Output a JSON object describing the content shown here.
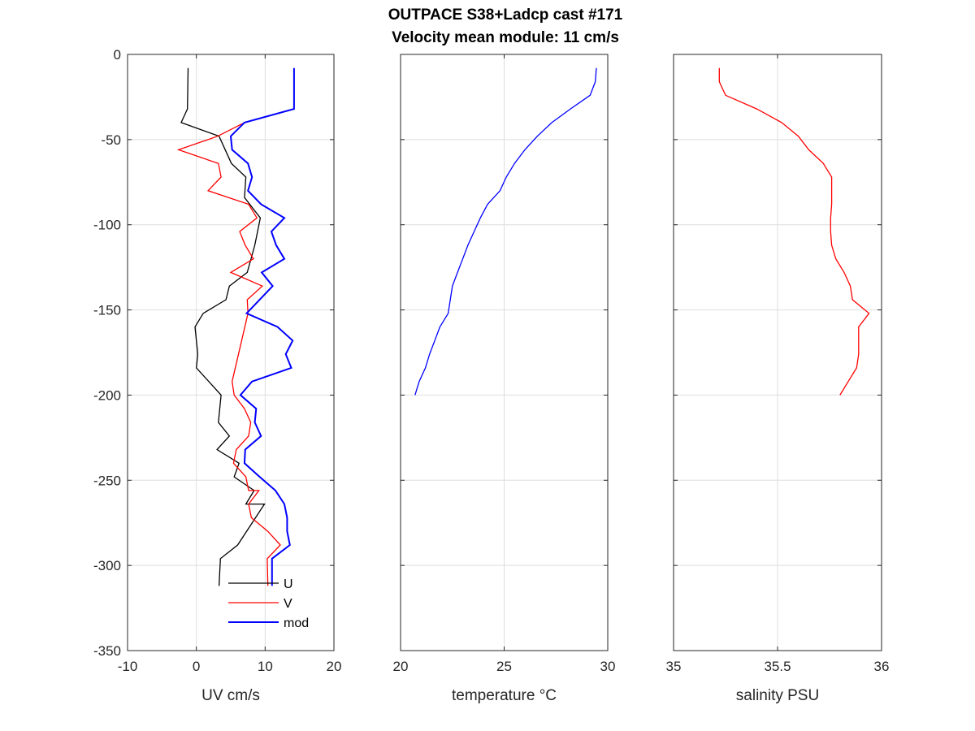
{
  "chart_data": {
    "title": "OUTPACE S38+Ladcp cast #171",
    "subtitle": "Velocity mean module:  11 cm/s",
    "panels": [
      {
        "type": "line",
        "xlabel": "UV cm/s",
        "xlim": [
          -10,
          20
        ],
        "xticks": [
          "-10",
          "0",
          "10",
          "20"
        ],
        "ylim": [
          -350,
          0
        ],
        "yticks": [
          "0",
          "-50",
          "-100",
          "-150",
          "-200",
          "-250",
          "-300",
          "-350"
        ],
        "grid": true,
        "legend": {
          "placement": "bottom-right",
          "entries": [
            "U",
            "V",
            "mod"
          ]
        },
        "series": [
          {
            "name": "U",
            "color": "#000000",
            "width": 1.3,
            "points": [
              [
                -1.2,
                -8
              ],
              [
                -1.3,
                -32
              ],
              [
                -2.2,
                -40
              ],
              [
                3.3,
                -48
              ],
              [
                5.1,
                -64
              ],
              [
                7.2,
                -72
              ],
              [
                7.0,
                -84
              ],
              [
                9.3,
                -96
              ],
              [
                8.5,
                -112
              ],
              [
                7.4,
                -128
              ],
              [
                4.8,
                -136
              ],
              [
                4.3,
                -144
              ],
              [
                1.0,
                -152
              ],
              [
                -0.2,
                -160
              ],
              [
                0.2,
                -176
              ],
              [
                0.0,
                -184
              ],
              [
                3.6,
                -200
              ],
              [
                3.2,
                -216
              ],
              [
                4.8,
                -224
              ],
              [
                3.0,
                -232
              ],
              [
                6.2,
                -240
              ],
              [
                5.5,
                -248
              ],
              [
                8.4,
                -256
              ],
              [
                7.2,
                -264
              ],
              [
                9.9,
                -264
              ],
              [
                6.0,
                -288
              ],
              [
                3.5,
                -296
              ],
              [
                3.3,
                -312
              ]
            ]
          },
          {
            "name": "V",
            "color": "#ff0000",
            "width": 1.3,
            "points": [
              [
                7.0,
                -40
              ],
              [
                3.1,
                -48
              ],
              [
                -2.6,
                -56
              ],
              [
                3.2,
                -64
              ],
              [
                3.6,
                -72
              ],
              [
                1.7,
                -80
              ],
              [
                7.6,
                -88
              ],
              [
                8.8,
                -96
              ],
              [
                6.3,
                -104
              ],
              [
                7.1,
                -112
              ],
              [
                8.3,
                -120
              ],
              [
                5.0,
                -128
              ],
              [
                9.6,
                -136
              ],
              [
                7.4,
                -144
              ],
              [
                7.5,
                -152
              ],
              [
                5.2,
                -192
              ],
              [
                5.5,
                -200
              ],
              [
                7.0,
                -208
              ],
              [
                7.9,
                -216
              ],
              [
                7.6,
                -224
              ],
              [
                5.8,
                -232
              ],
              [
                5.4,
                -240
              ],
              [
                7.2,
                -248
              ],
              [
                7.6,
                -256
              ],
              [
                9.1,
                -256
              ],
              [
                7.6,
                -264
              ],
              [
                8.0,
                -272
              ],
              [
                10.4,
                -280
              ],
              [
                12.2,
                -288
              ],
              [
                10.3,
                -296
              ],
              [
                10.4,
                -312
              ]
            ]
          },
          {
            "name": "mod",
            "color": "#0000ff",
            "width": 2,
            "points": [
              [
                14.2,
                -8
              ],
              [
                14.2,
                -32
              ],
              [
                7.0,
                -40
              ],
              [
                5.0,
                -48
              ],
              [
                5.2,
                -56
              ],
              [
                7.5,
                -64
              ],
              [
                8.1,
                -72
              ],
              [
                7.5,
                -80
              ],
              [
                9.4,
                -88
              ],
              [
                12.8,
                -96
              ],
              [
                10.9,
                -104
              ],
              [
                11.6,
                -112
              ],
              [
                12.8,
                -120
              ],
              [
                9.5,
                -128
              ],
              [
                11.1,
                -136
              ],
              [
                7.3,
                -152
              ],
              [
                11.8,
                -160
              ],
              [
                14.0,
                -168
              ],
              [
                13.0,
                -176
              ],
              [
                13.8,
                -184
              ],
              [
                8.1,
                -192
              ],
              [
                6.4,
                -200
              ],
              [
                8.7,
                -208
              ],
              [
                8.5,
                -216
              ],
              [
                9.4,
                -224
              ],
              [
                7.1,
                -232
              ],
              [
                7.0,
                -240
              ],
              [
                9.2,
                -248
              ],
              [
                11.5,
                -256
              ],
              [
                12.8,
                -264
              ],
              [
                13.2,
                -272
              ],
              [
                13.2,
                -280
              ],
              [
                13.6,
                -288
              ],
              [
                11.0,
                -296
              ],
              [
                11.0,
                -312
              ]
            ]
          }
        ]
      },
      {
        "type": "line",
        "xlabel": "temperature °C",
        "xlim": [
          20,
          30
        ],
        "xticks": [
          "20",
          "25",
          "30"
        ],
        "ylim": [
          -350,
          0
        ],
        "grid": true,
        "series": [
          {
            "color": "#0000ff",
            "width": 1.3,
            "points": [
              [
                29.45,
                -8
              ],
              [
                29.4,
                -16
              ],
              [
                29.15,
                -24
              ],
              [
                28.2,
                -32
              ],
              [
                27.3,
                -40
              ],
              [
                26.6,
                -48
              ],
              [
                26.0,
                -56
              ],
              [
                25.5,
                -64
              ],
              [
                25.1,
                -72
              ],
              [
                24.8,
                -80
              ],
              [
                24.2,
                -88
              ],
              [
                23.85,
                -96
              ],
              [
                23.55,
                -104
              ],
              [
                23.25,
                -112
              ],
              [
                23.0,
                -120
              ],
              [
                22.75,
                -128
              ],
              [
                22.5,
                -136
              ],
              [
                22.4,
                -144
              ],
              [
                22.3,
                -152
              ],
              [
                21.9,
                -160
              ],
              [
                21.65,
                -168
              ],
              [
                21.4,
                -176
              ],
              [
                21.2,
                -184
              ],
              [
                20.9,
                -192
              ],
              [
                20.7,
                -200
              ]
            ]
          }
        ]
      },
      {
        "type": "line",
        "xlabel": "salinity PSU",
        "xlim": [
          35,
          36
        ],
        "xticks": [
          "35",
          "35.5",
          "36"
        ],
        "ylim": [
          -350,
          0
        ],
        "grid": true,
        "series": [
          {
            "color": "#ff0000",
            "width": 1.3,
            "points": [
              [
                35.22,
                -8
              ],
              [
                35.22,
                -16
              ],
              [
                35.25,
                -24
              ],
              [
                35.4,
                -32
              ],
              [
                35.52,
                -40
              ],
              [
                35.6,
                -48
              ],
              [
                35.65,
                -56
              ],
              [
                35.72,
                -64
              ],
              [
                35.76,
                -72
              ],
              [
                35.76,
                -80
              ],
              [
                35.76,
                -88
              ],
              [
                35.755,
                -96
              ],
              [
                35.755,
                -104
              ],
              [
                35.76,
                -112
              ],
              [
                35.78,
                -120
              ],
              [
                35.82,
                -128
              ],
              [
                35.85,
                -136
              ],
              [
                35.86,
                -144
              ],
              [
                35.94,
                -152
              ],
              [
                35.89,
                -160
              ],
              [
                35.89,
                -168
              ],
              [
                35.89,
                -176
              ],
              [
                35.88,
                -184
              ],
              [
                35.84,
                -192
              ],
              [
                35.8,
                -200
              ]
            ]
          }
        ]
      }
    ]
  }
}
